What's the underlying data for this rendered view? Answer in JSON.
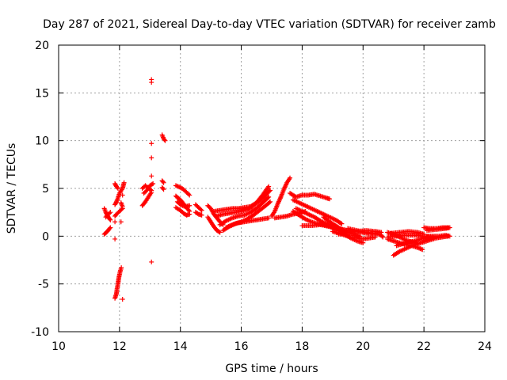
{
  "chart_data": {
    "type": "scatter",
    "title": "Day 287 of 2021, Sidereal Day-to-day VTEC variation (SDTVAR) for receiver zamb",
    "xlabel": "GPS time / hours",
    "ylabel": "SDTVAR / TECUs",
    "xlim": [
      10,
      24
    ],
    "ylim": [
      -10,
      20
    ],
    "xticks": [
      "10",
      "12",
      "14",
      "16",
      "18",
      "20",
      "22",
      "24"
    ],
    "yticks": [
      "-10",
      "-5",
      "0",
      "5",
      "10",
      "15",
      "20"
    ],
    "grid": true,
    "marker": "plus",
    "color": "#ff0000",
    "series": [
      {
        "name": "SDTVAR",
        "segments": [
          [
            11.5,
            2.9,
            11.55,
            2.5,
            11.6,
            2.2,
            11.65,
            1.9,
            11.7,
            1.7
          ],
          [
            11.5,
            0.2,
            11.55,
            0.35,
            11.6,
            0.5,
            11.65,
            0.7,
            11.7,
            0.9
          ],
          [
            11.55,
            2.0,
            11.6,
            2.2,
            11.7,
            2.5
          ],
          [
            11.85,
            3.3,
            11.9,
            3.6,
            11.95,
            4.0,
            12.0,
            4.5,
            12.1,
            5.0,
            12.15,
            5.6
          ],
          [
            11.85,
            5.5,
            11.9,
            5.2,
            11.95,
            5.0
          ],
          [
            11.85,
            2.1,
            11.9,
            2.3,
            12.0,
            2.6,
            12.1,
            2.9
          ],
          [
            11.85,
            -6.5,
            11.9,
            -6.0,
            11.92,
            -5.5,
            11.95,
            -5.0,
            11.97,
            -4.5,
            12.0,
            -4.0,
            12.03,
            -3.6,
            12.06,
            -3.3
          ],
          [
            11.85,
            -0.3
          ],
          [
            12.05,
            1.5
          ],
          [
            11.85,
            1.5
          ],
          [
            12.1,
            4.3
          ],
          [
            12.05,
            3.5,
            12.1,
            3.1
          ],
          [
            12.1,
            -6.6
          ],
          [
            12.75,
            3.2,
            12.85,
            3.6,
            12.95,
            4.1,
            13.05,
            4.6
          ],
          [
            12.75,
            5.0,
            12.85,
            5.3,
            12.95,
            5.0,
            13.05,
            4.8
          ],
          [
            12.8,
            4.5,
            12.9,
            4.8,
            13.0,
            5.3,
            13.1,
            5.5
          ],
          [
            13.05,
            16.1
          ],
          [
            13.05,
            16.4
          ],
          [
            13.05,
            9.7
          ],
          [
            13.05,
            8.2
          ],
          [
            13.05,
            6.3
          ],
          [
            13.05,
            -2.7
          ],
          [
            13.4,
            10.6,
            13.45,
            10.2,
            13.5,
            10.0
          ],
          [
            13.4,
            5.8,
            13.45,
            5.6
          ],
          [
            13.4,
            5.1,
            13.45,
            4.9
          ],
          [
            13.85,
            5.3,
            14.0,
            5.1,
            14.1,
            4.9,
            14.2,
            4.6,
            14.3,
            4.3
          ],
          [
            13.85,
            4.2,
            14.0,
            3.8,
            14.1,
            3.4,
            14.2,
            3.0,
            14.3,
            2.6
          ],
          [
            13.85,
            3.0,
            14.0,
            2.7,
            14.1,
            2.4,
            14.2,
            2.2,
            14.3,
            2.3
          ],
          [
            13.9,
            3.6,
            14.0,
            3.3,
            14.15,
            3.1,
            14.3,
            3.2
          ],
          [
            14.5,
            3.3,
            14.6,
            3.0,
            14.7,
            2.7
          ],
          [
            14.5,
            2.5,
            14.6,
            2.3,
            14.7,
            2.2
          ],
          [
            14.9,
            3.2,
            15.0,
            2.9,
            15.1,
            2.3,
            15.2,
            1.9,
            15.3,
            1.5,
            15.4,
            1.2
          ],
          [
            14.9,
            2.0,
            15.0,
            1.5,
            15.1,
            1.0,
            15.2,
            0.6,
            15.3,
            0.4
          ],
          [
            15.1,
            2.6,
            15.3,
            2.7,
            15.5,
            2.8,
            15.7,
            2.9,
            15.9,
            2.9,
            16.1,
            3.0,
            16.3,
            3.1,
            16.5,
            3.5,
            16.7,
            4.3,
            16.9,
            5.2
          ],
          [
            15.2,
            2.1,
            15.4,
            2.3,
            15.6,
            2.4,
            15.8,
            2.5,
            16.0,
            2.6,
            16.2,
            2.8,
            16.4,
            3.2,
            16.6,
            3.7,
            16.8,
            4.3,
            16.95,
            4.8
          ],
          [
            15.3,
            1.2,
            15.5,
            1.6,
            15.7,
            1.9,
            15.9,
            2.1,
            16.1,
            2.2,
            16.3,
            2.5,
            16.5,
            2.9,
            16.7,
            3.5,
            16.9,
            4.1
          ],
          [
            15.4,
            0.6,
            15.6,
            1.0,
            15.8,
            1.3,
            16.0,
            1.5,
            16.2,
            1.8,
            16.4,
            2.2,
            16.6,
            2.7,
            16.8,
            3.2,
            16.95,
            3.6
          ],
          [
            15.5,
            0.9,
            15.7,
            1.2,
            15.9,
            1.4,
            16.1,
            1.5,
            16.3,
            1.6,
            16.5,
            1.7,
            16.7,
            1.8,
            16.9,
            1.9
          ],
          [
            17.0,
            2.1,
            17.1,
            2.6,
            17.2,
            3.4,
            17.3,
            4.1,
            17.4,
            4.9,
            17.5,
            5.6,
            17.6,
            6.1
          ],
          [
            17.1,
            1.9,
            17.3,
            2.0,
            17.5,
            2.1,
            17.7,
            2.3,
            17.9,
            2.4,
            18.1,
            2.6
          ],
          [
            17.6,
            4.5,
            17.8,
            4.1,
            18.0,
            4.3,
            18.2,
            4.3,
            18.4,
            4.4,
            18.6,
            4.2,
            18.8,
            4.0,
            18.9,
            3.9
          ],
          [
            17.7,
            3.8,
            17.9,
            3.5,
            18.1,
            3.2,
            18.3,
            2.9,
            18.5,
            2.6,
            18.7,
            2.3,
            18.9,
            2.0,
            19.1,
            1.7,
            19.3,
            1.3
          ],
          [
            17.8,
            2.9,
            18.0,
            2.6,
            18.2,
            2.3,
            18.4,
            2.0,
            18.6,
            1.6,
            18.8,
            1.3,
            19.0,
            0.9,
            19.2,
            0.6
          ],
          [
            17.7,
            2.6,
            17.9,
            2.2,
            18.1,
            1.8,
            18.3,
            1.5,
            18.5,
            1.3,
            18.7,
            1.2,
            18.9,
            1.0,
            19.1,
            0.8
          ],
          [
            18.0,
            1.1,
            18.3,
            1.1,
            18.6,
            1.2,
            18.9,
            1.0,
            19.2,
            0.8,
            19.5,
            0.6,
            19.8,
            0.5,
            20.1,
            0.3,
            20.4,
            0.2
          ],
          [
            18.7,
            2.0,
            18.9,
            1.5,
            19.1,
            1.1,
            19.3,
            0.7,
            19.5,
            0.4,
            19.7,
            0.2,
            19.9,
            0.0
          ],
          [
            18.8,
            1.2,
            19.0,
            0.9,
            19.2,
            0.6,
            19.4,
            0.2,
            19.6,
            -0.2,
            19.8,
            -0.5,
            20.0,
            -0.7
          ],
          [
            19.0,
            0.5,
            19.2,
            0.3,
            19.4,
            0.1,
            19.6,
            -0.1,
            19.8,
            -0.2,
            20.0,
            -0.3,
            20.2,
            -0.2,
            20.4,
            -0.1
          ],
          [
            19.2,
            0.2,
            19.5,
            0.4,
            19.8,
            0.5,
            20.1,
            0.6,
            20.4,
            0.5,
            20.6,
            0.4
          ],
          [
            19.5,
            0.8,
            19.8,
            0.6,
            20.1,
            0.4,
            20.4,
            0.3,
            20.6,
            0.1
          ],
          [
            20.6,
            0.1,
            20.65,
            -0.1
          ],
          [
            20.8,
            0.4,
            21.0,
            0.2,
            21.2,
            -0.1,
            21.4,
            -0.4,
            21.6,
            -0.6,
            21.8,
            -0.8
          ],
          [
            20.8,
            -0.3,
            21.0,
            -0.5,
            21.2,
            -0.7,
            21.4,
            -0.9,
            21.6,
            -1.0,
            21.8,
            -1.2,
            21.95,
            -1.4
          ],
          [
            20.8,
            -0.1,
            21.1,
            0.0,
            21.4,
            0.1,
            21.7,
            0.1,
            22.0,
            0.0,
            22.3,
            -0.1
          ],
          [
            20.9,
            0.3,
            21.2,
            0.4,
            21.5,
            0.5,
            21.8,
            0.4,
            22.0,
            0.2
          ],
          [
            21.0,
            -2.0,
            21.2,
            -1.6,
            21.4,
            -1.3,
            21.6,
            -1.0,
            21.8,
            -0.8,
            22.0,
            -0.6,
            22.2,
            -0.4,
            22.4,
            -0.2,
            22.6,
            -0.1,
            22.8,
            0.0
          ],
          [
            21.1,
            -1.0,
            21.3,
            -0.8,
            21.5,
            -0.6,
            21.7,
            -0.5,
            21.9,
            -0.3,
            22.1,
            -0.2,
            22.3,
            -0.1
          ],
          [
            22.1,
            0.0,
            22.3,
            0.0,
            22.5,
            0.0,
            22.7,
            0.1,
            22.85,
            0.0
          ],
          [
            22.0,
            0.9,
            22.2,
            0.8,
            22.4,
            0.8,
            22.6,
            0.9,
            22.8,
            0.9
          ],
          [
            22.1,
            0.6,
            22.4,
            0.7,
            22.7,
            0.8,
            22.85,
            0.9
          ]
        ]
      }
    ]
  }
}
